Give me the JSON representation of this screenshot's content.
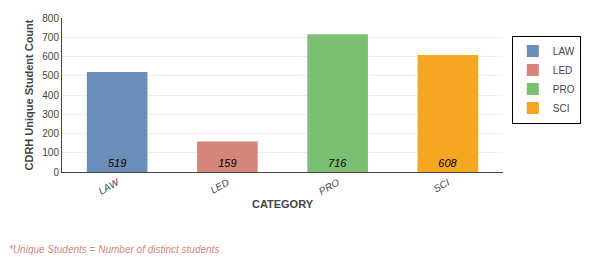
{
  "chart_data": {
    "type": "bar",
    "categories": [
      "LAW",
      "LED",
      "PRO",
      "SCI"
    ],
    "values": [
      519,
      159,
      716,
      608
    ],
    "colors": [
      "#6b8eb8",
      "#d4857a",
      "#7dbf72",
      "#f5a623"
    ],
    "xlabel": "CATEGORY",
    "ylabel": "CDRH Unique Student Count",
    "ylim": [
      0,
      800
    ],
    "yticks": [
      0,
      100,
      200,
      300,
      400,
      500,
      600,
      700,
      800
    ],
    "grid": true,
    "legend": "right",
    "data_labels": true,
    "annotations": [
      {
        "text": "*Unique Students = Number of distinct students",
        "color": "#d4857a"
      }
    ]
  }
}
